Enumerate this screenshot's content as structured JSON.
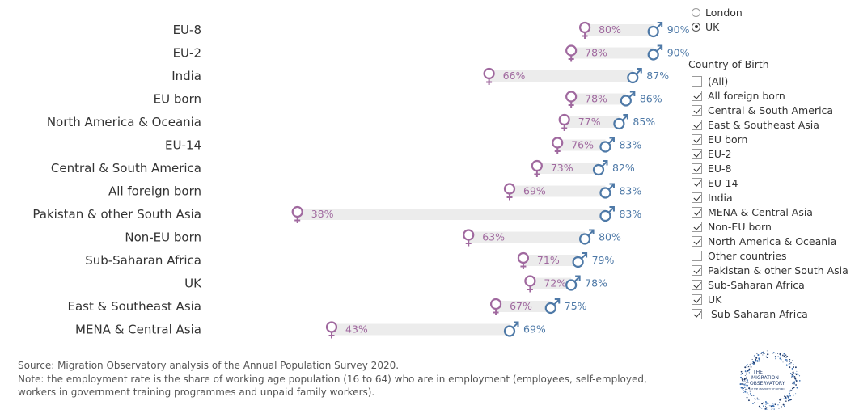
{
  "colors": {
    "female": "#a0699f",
    "male": "#4e79a7",
    "bar": "#ececec",
    "text": "#333333"
  },
  "chart_data": {
    "type": "dumbbell",
    "title": "",
    "xlabel": "",
    "ylabel": "",
    "xlim": [
      30,
      95
    ],
    "measure": "Employment rate",
    "series": [
      {
        "name": "Female",
        "icon": "female-symbol-icon"
      },
      {
        "name": "Male",
        "icon": "male-symbol-icon"
      }
    ],
    "rows": [
      {
        "label": "EU-8",
        "female": 80,
        "male": 90,
        "female_label": "80%",
        "male_label": "90%"
      },
      {
        "label": "EU-2",
        "female": 78,
        "male": 90,
        "female_label": "78%",
        "male_label": "90%"
      },
      {
        "label": "India",
        "female": 66,
        "male": 87,
        "female_label": "66%",
        "male_label": "87%"
      },
      {
        "label": "EU born",
        "female": 78,
        "male": 86,
        "female_label": "78%",
        "male_label": "86%"
      },
      {
        "label": "North America & Oceania",
        "female": 77,
        "male": 85,
        "female_label": "77%",
        "male_label": "85%"
      },
      {
        "label": "EU-14",
        "female": 76,
        "male": 83,
        "female_label": "76%",
        "male_label": "83%"
      },
      {
        "label": "Central & South America",
        "female": 73,
        "male": 82,
        "female_label": "73%",
        "male_label": "82%"
      },
      {
        "label": "All foreign born",
        "female": 69,
        "male": 83,
        "female_label": "69%",
        "male_label": "83%"
      },
      {
        "label": "Pakistan & other South Asia",
        "female": 38,
        "male": 83,
        "female_label": "38%",
        "male_label": "83%"
      },
      {
        "label": "Non-EU born",
        "female": 63,
        "male": 80,
        "female_label": "63%",
        "male_label": "80%"
      },
      {
        "label": "Sub-Saharan Africa",
        "female": 71,
        "male": 79,
        "female_label": "71%",
        "male_label": "79%"
      },
      {
        "label": "UK",
        "female": 72,
        "male": 78,
        "female_label": "72%",
        "male_label": "78%"
      },
      {
        "label": "East & Southeast Asia",
        "female": 67,
        "male": 75,
        "female_label": "67%",
        "male_label": "75%"
      },
      {
        "label": "MENA & Central Asia",
        "female": 43,
        "male": 69,
        "female_label": "43%",
        "male_label": "69%"
      }
    ]
  },
  "controls": {
    "region_options": [
      {
        "label": "London",
        "selected": false
      },
      {
        "label": "UK",
        "selected": true
      }
    ],
    "filter_title": "Country of Birth",
    "filter_items": [
      {
        "label": "(All)",
        "checked": false
      },
      {
        "label": "All foreign born",
        "checked": true
      },
      {
        "label": "Central & South America",
        "checked": true
      },
      {
        "label": "East & Southeast Asia",
        "checked": true
      },
      {
        "label": "EU born",
        "checked": true
      },
      {
        "label": "EU-2",
        "checked": true
      },
      {
        "label": "EU-8",
        "checked": true
      },
      {
        "label": "EU-14",
        "checked": true
      },
      {
        "label": "India",
        "checked": true
      },
      {
        "label": "MENA & Central Asia",
        "checked": true
      },
      {
        "label": "Non-EU born",
        "checked": true
      },
      {
        "label": "North America & Oceania",
        "checked": true
      },
      {
        "label": "Other countries",
        "checked": false
      },
      {
        "label": "Pakistan & other South Asia",
        "checked": true
      },
      {
        "label": "Sub-Saharan Africa",
        "checked": true
      },
      {
        "label": "UK",
        "checked": true
      },
      {
        "label": " Sub-Saharan Africa",
        "checked": true
      }
    ]
  },
  "footer": {
    "source": "Source: Migration Observatory analysis of the Annual Population Survey 2020.",
    "note": "Note: the employment rate is the share of working age population (16 to 64) who are in employment (employees, self-employed,\nworkers in government training programmes and unpaid family workers)."
  },
  "logo": {
    "line1": "THE",
    "line2": "MIGRATION",
    "line3": "OBSERVATORY",
    "line4": "AT THE UNIVERSITY OF OXFORD"
  }
}
